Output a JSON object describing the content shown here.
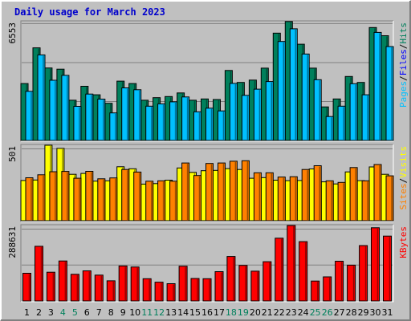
{
  "chart_data": {
    "type": "bar",
    "title": "Daily usage for March 2023",
    "days": [
      "1",
      "2",
      "3",
      "4",
      "5",
      "6",
      "7",
      "8",
      "9",
      "10",
      "11",
      "12",
      "13",
      "14",
      "15",
      "16",
      "17",
      "18",
      "19",
      "20",
      "21",
      "22",
      "23",
      "24",
      "25",
      "26",
      "27",
      "28",
      "29",
      "30",
      "31"
    ],
    "weekend_days": [
      "4",
      "5",
      "11",
      "12",
      "18",
      "19",
      "25",
      "26"
    ],
    "colors": {
      "hits": "#00805c",
      "files": "#00c0ff",
      "pages": "#00c0ff",
      "visits": "#ffff00",
      "sites": "#ff8000",
      "kbytes": "#ff0000",
      "weekday_label": "#000000",
      "weekend_label": "#00805c"
    },
    "panels": [
      {
        "id": "hits",
        "scale_label": "6553",
        "ymax": 6553,
        "legend": [
          {
            "text": "Pages",
            "color": "#00c0ff"
          },
          {
            "text": "Files",
            "color": "#0000ff"
          },
          {
            "text": "Hits",
            "color": "#00805c"
          }
        ],
        "series": [
          {
            "name": "Hits",
            "color": "#00805c",
            "values": [
              3140,
              5110,
              4000,
              3930,
              2220,
              2990,
              2520,
              2050,
              3270,
              3140,
              2220,
              2360,
              2420,
              2620,
              2220,
              2290,
              2260,
              3860,
              3200,
              3330,
              3990,
              5920,
              6560,
              5310,
              3990,
              1850,
              2290,
              3530,
              3200,
              6230,
              5780
            ]
          },
          {
            "name": "Files",
            "color": "#00c0ff",
            "values": [
              2710,
              4720,
              3320,
              3590,
              1880,
              2560,
              2280,
              1520,
              2900,
              2800,
              1890,
              2020,
              2130,
              2400,
              1580,
              1780,
              1630,
              3150,
              2490,
              2830,
              3250,
              5460,
              6160,
              4770,
              3350,
              1320,
              1890,
              3130,
              2520,
              5960,
              5180
            ]
          }
        ]
      },
      {
        "id": "visits",
        "scale_label": "501",
        "ymax": 501,
        "legend": [
          {
            "text": "Sites",
            "color": "#ff8000"
          },
          {
            "text": "Visits",
            "color": "#ffff00"
          }
        ],
        "series": [
          {
            "name": "Visits",
            "color": "#ffff00",
            "values": [
              267,
              270,
              501,
              480,
              308,
              314,
              263,
              265,
              358,
              345,
              243,
              246,
              269,
              350,
              321,
              332,
              334,
              346,
              340,
              282,
              286,
              269,
              266,
              267,
              344,
              258,
              244,
              324,
              266,
              357,
              308
            ]
          },
          {
            "name": "Sites",
            "color": "#ff8000",
            "values": [
              285,
              305,
              325,
              327,
              282,
              328,
              278,
              284,
              340,
              323,
              262,
              265,
              262,
              383,
              300,
              380,
              383,
              395,
              398,
              318,
              318,
              290,
              292,
              340,
              365,
              265,
              254,
              353,
              265,
              373,
              298
            ]
          }
        ]
      },
      {
        "id": "kbytes",
        "scale_label": "288631",
        "ymax": 288631,
        "legend": [
          {
            "text": "KBytes",
            "color": "#ff0000"
          }
        ],
        "series": [
          {
            "name": "KBytes",
            "color": "#ff0000",
            "values": [
              106000,
              209000,
              110000,
              153000,
              102000,
              115000,
              99000,
              77000,
              134000,
              130000,
              85000,
              72000,
              66000,
              133000,
              86000,
              85000,
              112000,
              170000,
              136000,
              114000,
              150000,
              240000,
              288631,
              227000,
              76000,
              92000,
              152000,
              137000,
              212000,
              280000,
              248000
            ]
          }
        ]
      }
    ]
  }
}
